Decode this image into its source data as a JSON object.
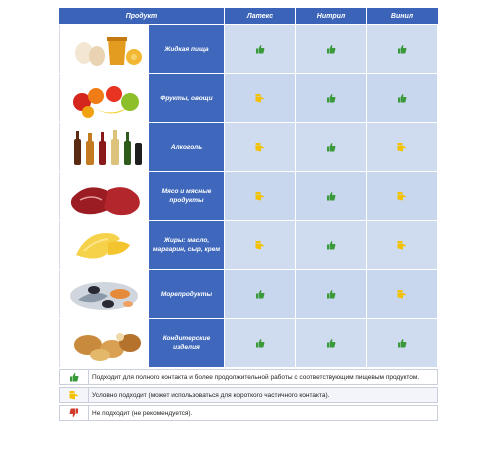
{
  "header": {
    "product": "Продукт",
    "materials": [
      "Латекс",
      "Нитрил",
      "Винил"
    ]
  },
  "rows": [
    {
      "name": "Жидкая пища",
      "illustration": "eggs-honey",
      "ratings": [
        "good",
        "good",
        "good"
      ]
    },
    {
      "name": "Фрукты, овощи",
      "illustration": "fruits",
      "ratings": [
        "conditional",
        "good",
        "good"
      ]
    },
    {
      "name": "Алкоголь",
      "illustration": "bottles",
      "ratings": [
        "conditional",
        "good",
        "conditional"
      ]
    },
    {
      "name": "Мясо и мясные продукты",
      "illustration": "meat",
      "ratings": [
        "conditional",
        "good",
        "conditional"
      ]
    },
    {
      "name": "Жиры: масло, маргарин, сыр, крем",
      "illustration": "butter",
      "ratings": [
        "conditional",
        "good",
        "conditional"
      ]
    },
    {
      "name": "Морепродукты",
      "illustration": "seafood",
      "ratings": [
        "good",
        "good",
        "conditional"
      ]
    },
    {
      "name": "Кондитерские изделия",
      "illustration": "pastry",
      "ratings": [
        "good",
        "good",
        "good"
      ]
    }
  ],
  "legend": [
    {
      "icon": "thumb-up-green-icon",
      "text": "Подходит для полного контакта и более продолжительной работы с соответствующим пищевым продуктом."
    },
    {
      "icon": "thumb-sideways-yellow-icon",
      "text": "Условно подходит (может использоваться для короткого частичного контакта)."
    },
    {
      "icon": "thumb-down-red-icon",
      "text": "Не подходит (не рекомендуется)."
    }
  ],
  "colors": {
    "header_bg": "#3b64b8",
    "name_bg": "#3f68bc",
    "cell_bg": "#c8d6ee",
    "good": "#3a9a3a",
    "conditional": "#f2c200",
    "bad": "#d23a2a"
  }
}
